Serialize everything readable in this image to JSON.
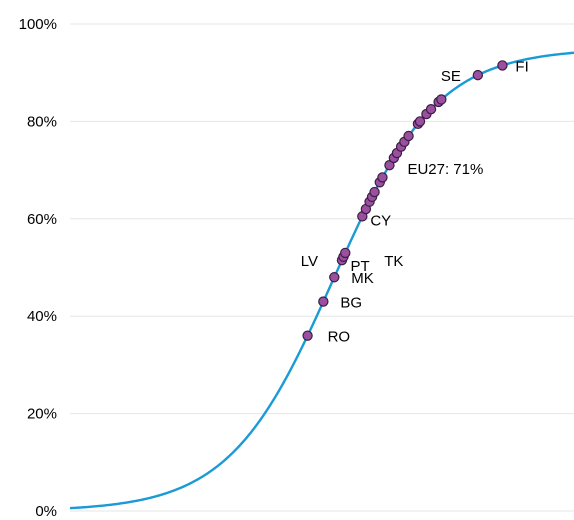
{
  "chart_data": {
    "type": "scatter",
    "title": "",
    "xlabel": "",
    "ylabel": "",
    "ylim": [
      0,
      100
    ],
    "y_ticks": [
      {
        "value": 0,
        "label": "0%"
      },
      {
        "value": 20,
        "label": "20%"
      },
      {
        "value": 40,
        "label": "40%"
      },
      {
        "value": 60,
        "label": "60%"
      },
      {
        "value": 80,
        "label": "80%"
      },
      {
        "value": 100,
        "label": "100%"
      }
    ],
    "grid": true,
    "legend": "none",
    "colors": {
      "curve": "#1a9ad6",
      "marker_fill": "#9b4f9f",
      "marker_stroke": "#3a1e44",
      "grid": "#e6e6e6"
    },
    "curve": {
      "description": "logistic S-curve",
      "asymptote": 95,
      "midpoint_index": 10.8,
      "steepness": 0.27
    },
    "points": [
      {
        "label": "RO",
        "value": 36
      },
      {
        "label": "BG",
        "value": 43
      },
      {
        "label": "MK",
        "value": 48
      },
      {
        "label": "LV",
        "value": 51.5
      },
      {
        "label": "PT",
        "value": 52.2
      },
      {
        "label": "TK",
        "value": 53
      },
      {
        "label": "CY",
        "value": 60.5
      },
      {
        "label": "",
        "value": 62
      },
      {
        "label": "",
        "value": 63.5
      },
      {
        "label": "",
        "value": 64.5
      },
      {
        "label": "",
        "value": 65.5
      },
      {
        "label": "",
        "value": 67.5
      },
      {
        "label": "",
        "value": 68.5
      },
      {
        "label": "",
        "value": 71
      },
      {
        "label": "",
        "value": 72.5
      },
      {
        "label": "",
        "value": 73.5
      },
      {
        "label": "",
        "value": 74.8
      },
      {
        "label": "",
        "value": 75.8
      },
      {
        "label": "",
        "value": 77
      },
      {
        "label": "",
        "value": 79.5
      },
      {
        "label": "",
        "value": 80
      },
      {
        "label": "",
        "value": 81.5
      },
      {
        "label": "",
        "value": 82.5
      },
      {
        "label": "",
        "value": 84
      },
      {
        "label": "",
        "value": 84.5
      },
      {
        "label": "SE",
        "value": 89.5
      },
      {
        "label": "FI",
        "value": 91.5
      }
    ],
    "annotations": [
      {
        "text": "EU27: 71%",
        "value": 71
      }
    ]
  }
}
